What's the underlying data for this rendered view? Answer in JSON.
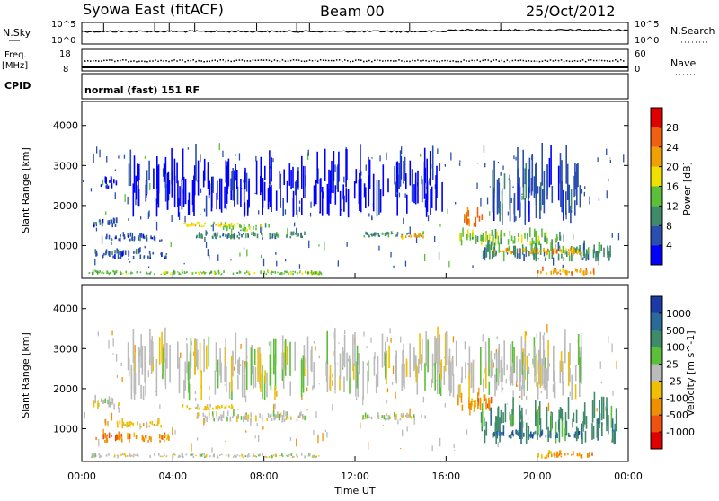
{
  "header": {
    "title": "Syowa East (fitACF)",
    "beam": "Beam 00",
    "date": "25/Oct/2012"
  },
  "left_labels": {
    "nsky": "N.Sky",
    "freq": "Freq.",
    "mhz": "[MHz]",
    "cpid": "CPID"
  },
  "right_labels": {
    "nsearch": "N.Search",
    "nave": "Nave"
  },
  "noise_panel": {
    "left_ticks": [
      "10^5",
      "10^0"
    ],
    "right_ticks": [
      "10^5",
      "10^0"
    ]
  },
  "freq_panel": {
    "left_ticks": [
      "18",
      "8"
    ],
    "right_ticks": [
      "60",
      "0"
    ]
  },
  "cpid_text": "normal (fast) 151 RF",
  "chart_data": [
    {
      "type": "heatmap",
      "name": "power",
      "ylabel": "Slant Range [km]",
      "xlabel": "",
      "y_ticks": [
        "1000",
        "2000",
        "3000",
        "4000"
      ],
      "colorbar": {
        "label": "Power [dB]",
        "ticks": [
          "4",
          "8",
          "12",
          "16",
          "20",
          "24",
          "28"
        ],
        "colors": [
          "#0000ff",
          "#2a4fb0",
          "#3f8a6a",
          "#5cbf3a",
          "#f0e000",
          "#f0a000",
          "#f06010",
          "#e00000"
        ]
      },
      "bands": [
        {
          "x0": 0.5,
          "x1": 1.6,
          "y0": 1450,
          "y1": 1700,
          "v": 1
        },
        {
          "x0": 0.5,
          "x1": 3.8,
          "y0": 650,
          "y1": 900,
          "v": 1
        },
        {
          "x0": 0.8,
          "x1": 1.6,
          "y0": 2400,
          "y1": 2700,
          "v": 0
        },
        {
          "x0": 1.0,
          "x1": 3.5,
          "y0": 1100,
          "y1": 1300,
          "v": 1
        },
        {
          "x0": 0.3,
          "x1": 10.5,
          "y0": 260,
          "y1": 380,
          "v": 3
        },
        {
          "x0": 4.4,
          "x1": 6.9,
          "y0": 1450,
          "y1": 1600,
          "v": 4
        },
        {
          "x0": 5.0,
          "x1": 9.8,
          "y0": 1150,
          "y1": 1350,
          "v": 2
        },
        {
          "x0": 6.0,
          "x1": 8.2,
          "y0": 1350,
          "y1": 1550,
          "v": 3
        },
        {
          "x0": 12.3,
          "x1": 15.2,
          "y0": 1200,
          "y1": 1350,
          "v": 2
        },
        {
          "x0": 14.0,
          "x1": 15.0,
          "y0": 1150,
          "y1": 1300,
          "v": 5
        },
        {
          "x0": 16.5,
          "x1": 21.0,
          "y0": 1000,
          "y1": 1400,
          "v": 3
        },
        {
          "x0": 16.7,
          "x1": 17.6,
          "y0": 1450,
          "y1": 1900,
          "v": 6
        },
        {
          "x0": 17.5,
          "x1": 23.5,
          "y0": 600,
          "y1": 1100,
          "v": 2
        },
        {
          "x0": 18.0,
          "x1": 22.0,
          "y0": 750,
          "y1": 950,
          "v": 5
        },
        {
          "x0": 20.0,
          "x1": 22.5,
          "y0": 250,
          "y1": 450,
          "v": 5
        },
        {
          "x0": 18.0,
          "x1": 22.0,
          "y0": 1500,
          "y1": 3300,
          "v": 1
        },
        {
          "x0": 2.0,
          "x1": 16.0,
          "y0": 1700,
          "y1": 3300,
          "v": 0
        }
      ]
    },
    {
      "type": "heatmap",
      "name": "velocity",
      "ylabel": "Slant Range [km]",
      "xlabel": "Time UT",
      "y_ticks": [
        "1000",
        "2000",
        "3000",
        "4000"
      ],
      "x_ticks": [
        "00:00",
        "04:00",
        "08:00",
        "12:00",
        "16:00",
        "20:00",
        "00:00"
      ],
      "colorbar": {
        "label": "Velocity [m s^-1]",
        "ticks": [
          "1000",
          "500",
          "100",
          "25",
          "-25",
          "-100",
          "-500",
          "-1000"
        ],
        "colors": [
          "#1a3aa8",
          "#2a6a9a",
          "#3f8a6a",
          "#5cbf3a",
          "#bbbbbb",
          "#f0c000",
          "#f09000",
          "#f05010",
          "#e00000"
        ]
      },
      "bands": [
        {
          "x0": 0.5,
          "x1": 1.6,
          "y0": 1450,
          "y1": 1800,
          "v": 4
        },
        {
          "x0": 0.5,
          "x1": 3.8,
          "y0": 650,
          "y1": 900,
          "v": 6
        },
        {
          "x0": 1.0,
          "x1": 3.5,
          "y0": 1000,
          "y1": 1250,
          "v": 5
        },
        {
          "x0": 0.3,
          "x1": 10.5,
          "y0": 260,
          "y1": 380,
          "v": 4
        },
        {
          "x0": 4.4,
          "x1": 6.9,
          "y0": 1450,
          "y1": 1600,
          "v": 5
        },
        {
          "x0": 5.0,
          "x1": 9.8,
          "y0": 1150,
          "y1": 1450,
          "v": 4
        },
        {
          "x0": 12.3,
          "x1": 15.2,
          "y0": 1200,
          "y1": 1400,
          "v": 4
        },
        {
          "x0": 16.5,
          "x1": 18.0,
          "y0": 1400,
          "y1": 1900,
          "v": 6
        },
        {
          "x0": 17.5,
          "x1": 23.5,
          "y0": 600,
          "y1": 1700,
          "v": 2
        },
        {
          "x0": 18.0,
          "x1": 22.0,
          "y0": 750,
          "y1": 950,
          "v": 1
        },
        {
          "x0": 20.0,
          "x1": 22.5,
          "y0": 250,
          "y1": 450,
          "v": 6
        },
        {
          "x0": 2.0,
          "x1": 22.0,
          "y0": 1700,
          "y1": 3300,
          "v": 4
        }
      ]
    }
  ]
}
